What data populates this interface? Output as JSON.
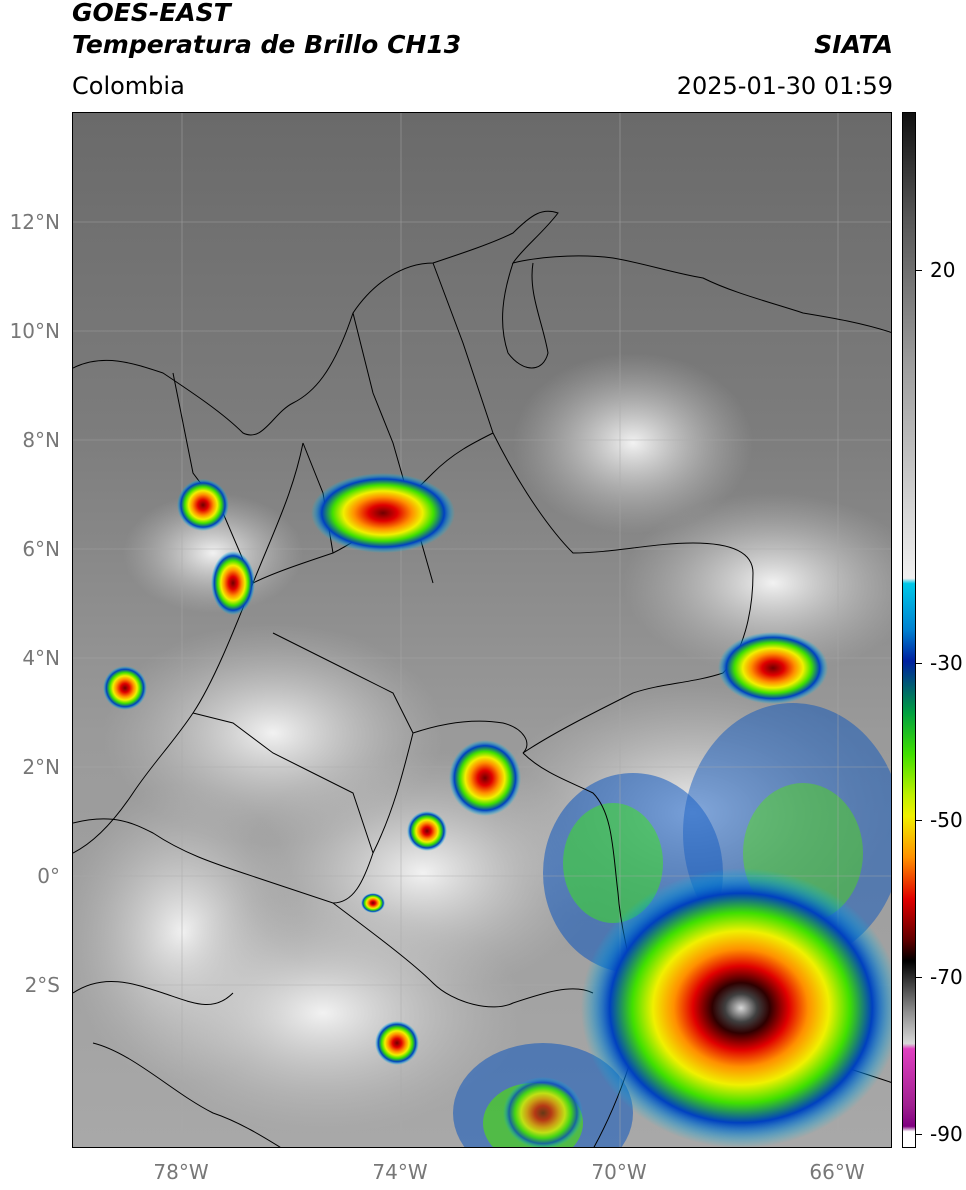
{
  "header": {
    "satellite": "GOES-EAST",
    "product": "Temperatura de Brillo CH13",
    "region": "Colombia",
    "agency": "SIATA",
    "datetime": "2025-01-30 01:59"
  },
  "map": {
    "lat_labels": [
      "12°N",
      "10°N",
      "8°N",
      "6°N",
      "4°N",
      "2°N",
      "0°",
      "2°S"
    ],
    "lon_labels": [
      "78°W",
      "74°W",
      "70°W",
      "66°W"
    ],
    "extent": {
      "lon_min": -80,
      "lon_max": -65,
      "lat_min": -5,
      "lat_max": 14
    }
  },
  "colorbar": {
    "labels": [
      "20",
      "-30",
      "-50",
      "-70",
      "-90"
    ],
    "colors": [
      "#111111",
      "#888888",
      "#e8e8e8",
      "#00c8e8",
      "#0030a0",
      "#00a040",
      "#40e000",
      "#f0f000",
      "#ff9000",
      "#e00000",
      "#600000",
      "#000000",
      "#c0c0c0",
      "#e040c0",
      "#800080"
    ]
  },
  "storms": [
    {
      "name": "cell-choco-north",
      "lon": -77.6,
      "lat": 6.8
    },
    {
      "name": "cell-magdalena",
      "lon": -74.4,
      "lat": 6.5
    },
    {
      "name": "cell-pacific",
      "lon": -78.9,
      "lat": 3.4
    },
    {
      "name": "cell-guaviare",
      "lon": -72.4,
      "lat": 1.8
    },
    {
      "name": "cell-orinoco",
      "lon": -66.7,
      "lat": 3.9
    },
    {
      "name": "cell-amazon-large",
      "lon": -67.7,
      "lat": -2.6
    }
  ]
}
